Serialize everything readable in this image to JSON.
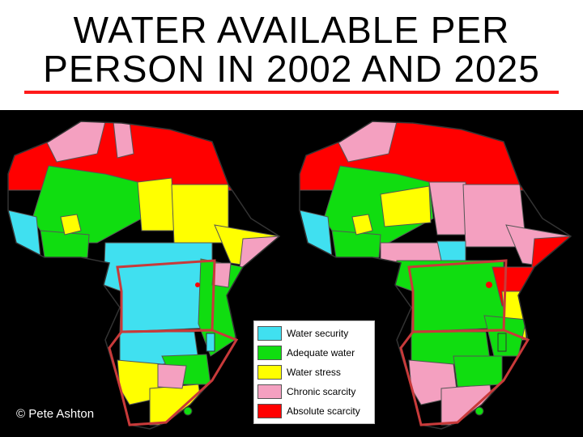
{
  "title": {
    "line1": "WATER  AVAILABLE  PER",
    "line2": "PERSON  IN  2002  AND  2025"
  },
  "colors": {
    "security": "#40e0f0",
    "adequate": "#10dd10",
    "stress": "#ffff00",
    "chronic": "#f4a0c0",
    "absolute": "#ff0000",
    "border": "#c83a3a",
    "background": "#000000"
  },
  "legend": [
    {
      "label": "Water security",
      "color": "#40e0f0"
    },
    {
      "label": "Adequate water",
      "color": "#10dd10"
    },
    {
      "label": "Water stress",
      "color": "#ffff00"
    },
    {
      "label": "Chronic scarcity",
      "color": "#f4a0c0"
    },
    {
      "label": "Absolute scarcity",
      "color": "#ff0000"
    }
  ],
  "credit": "© Pete Ashton"
}
